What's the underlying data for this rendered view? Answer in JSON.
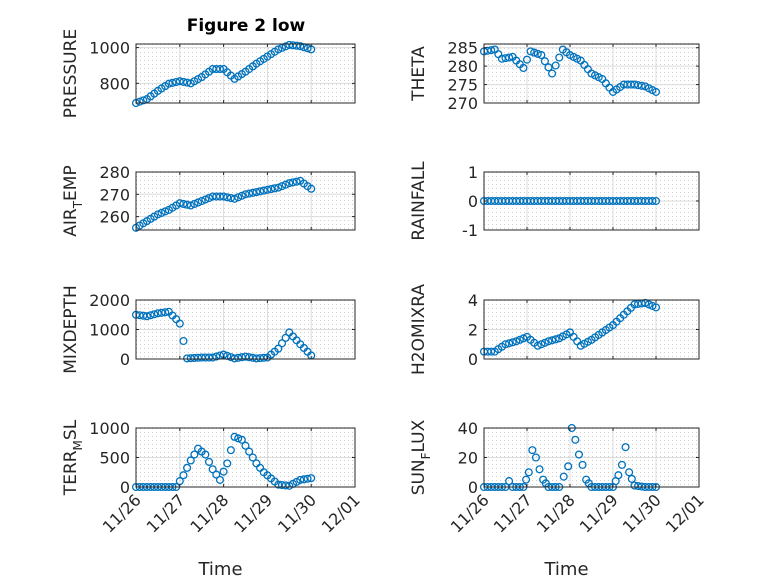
{
  "chart_data": [
    {
      "type": "scatter",
      "title": "Figure 2 low",
      "ylabel": "PRESSURE",
      "xlim": [
        "11/26",
        "12/01"
      ],
      "ylim": [
        690,
        1020
      ],
      "yticks": [
        800,
        1000
      ],
      "xtick_labels_shown": false,
      "grid": true,
      "color": "#0072BD",
      "series": [
        {
          "x": [
            "11/26 00:00",
            "11/26 06:00",
            "11/26 12:00",
            "11/26 18:00",
            "11/27 00:00",
            "11/27 06:00",
            "11/27 12:00",
            "11/27 18:00",
            "11/28 00:00",
            "11/28 06:00",
            "11/28 12:00",
            "11/28 18:00",
            "11/29 00:00",
            "11/29 06:00",
            "11/29 12:00",
            "11/29 18:00",
            "11/30 00:00"
          ],
          "y": [
            690,
            712,
            758,
            798,
            812,
            800,
            835,
            880,
            880,
            825,
            865,
            910,
            950,
            990,
            1015,
            1008,
            990
          ]
        }
      ]
    },
    {
      "type": "scatter",
      "ylabel": "THETA",
      "xlim": [
        "11/26",
        "12/01"
      ],
      "ylim": [
        270,
        286
      ],
      "yticks": [
        270,
        275,
        280,
        285
      ],
      "xtick_labels_shown": false,
      "grid": true,
      "color": "#0072BD",
      "series": [
        {
          "x": [
            "11/26 00:00",
            "11/26 06:00",
            "11/26 10:00",
            "11/26 16:00",
            "11/26 22:00",
            "11/27 02:00",
            "11/27 08:00",
            "11/27 14:00",
            "11/27 20:00",
            "11/28 00:00",
            "11/28 06:00",
            "11/28 12:00",
            "11/28 18:00",
            "11/29 00:00",
            "11/29 06:00",
            "11/29 12:00",
            "11/29 18:00",
            "11/30 00:00"
          ],
          "y": [
            284,
            284.5,
            282,
            282.5,
            279.5,
            284,
            283,
            278,
            284.5,
            283,
            281.5,
            278,
            276.5,
            273,
            275,
            275,
            274.5,
            273
          ]
        }
      ]
    },
    {
      "type": "scatter",
      "ylabel": "AIR_TEMP",
      "xlim": [
        "11/26",
        "12/01"
      ],
      "ylim": [
        254,
        280
      ],
      "yticks": [
        260,
        270,
        280
      ],
      "xtick_labels_shown": false,
      "grid": true,
      "color": "#0072BD",
      "series": [
        {
          "x": [
            "11/26 00:00",
            "11/26 06:00",
            "11/26 12:00",
            "11/26 18:00",
            "11/27 00:00",
            "11/27 06:00",
            "11/27 12:00",
            "11/27 18:00",
            "11/28 00:00",
            "11/28 06:00",
            "11/28 12:00",
            "11/28 18:00",
            "11/29 00:00",
            "11/29 06:00",
            "11/29 12:00",
            "11/29 18:00",
            "11/30 00:00"
          ],
          "y": [
            255,
            258,
            261,
            263,
            266,
            265,
            267,
            269,
            269,
            268,
            270,
            271,
            272,
            273,
            275,
            276,
            272.5
          ]
        }
      ]
    },
    {
      "type": "scatter",
      "ylabel": "RAINFALL",
      "xlim": [
        "11/26",
        "12/01"
      ],
      "ylim": [
        -1,
        1
      ],
      "yticks": [
        -1,
        0,
        1
      ],
      "xtick_labels_shown": false,
      "grid": true,
      "color": "#0072BD",
      "series": [
        {
          "x": [
            "11/26 00:00",
            "11/27 00:00",
            "11/28 00:00",
            "11/29 00:00",
            "11/30 00:00"
          ],
          "y": [
            0,
            0,
            0,
            0,
            0
          ]
        }
      ]
    },
    {
      "type": "scatter",
      "ylabel": "MIXDEPTH",
      "xlim": [
        "11/26",
        "12/01"
      ],
      "ylim": [
        0,
        2000
      ],
      "yticks": [
        0,
        1000,
        2000
      ],
      "xtick_labels_shown": false,
      "grid": true,
      "color": "#0072BD",
      "series": [
        {
          "x": [
            "11/26 00:00",
            "11/26 06:00",
            "11/26 12:00",
            "11/26 18:00",
            "11/26 22:00",
            "11/27 00:00",
            "11/27 04:00",
            "11/27 12:00",
            "11/27 18:00",
            "11/28 00:00",
            "11/28 06:00",
            "11/28 12:00",
            "11/28 18:00",
            "11/29 00:00",
            "11/29 06:00",
            "11/29 12:00",
            "11/29 18:00",
            "11/30 00:00"
          ],
          "y": [
            1500,
            1450,
            1550,
            1600,
            1350,
            1200,
            20,
            50,
            50,
            150,
            20,
            80,
            20,
            50,
            350,
            900,
            500,
            120
          ]
        }
      ]
    },
    {
      "type": "scatter",
      "ylabel": "H2OMIXRA",
      "xlim": [
        "11/26",
        "12/01"
      ],
      "ylim": [
        0,
        4
      ],
      "yticks": [
        0,
        2,
        4
      ],
      "xtick_labels_shown": false,
      "grid": true,
      "color": "#0072BD",
      "series": [
        {
          "x": [
            "11/26 00:00",
            "11/26 06:00",
            "11/26 12:00",
            "11/26 18:00",
            "11/27 00:00",
            "11/27 06:00",
            "11/27 12:00",
            "11/27 18:00",
            "11/28 00:00",
            "11/28 06:00",
            "11/28 12:00",
            "11/28 18:00",
            "11/29 00:00",
            "11/29 06:00",
            "11/29 12:00",
            "11/29 18:00",
            "11/30 00:00"
          ],
          "y": [
            0.5,
            0.5,
            1.0,
            1.2,
            1.5,
            0.9,
            1.2,
            1.4,
            1.8,
            0.9,
            1.3,
            1.8,
            2.3,
            3.0,
            3.7,
            3.8,
            3.5
          ]
        }
      ]
    },
    {
      "type": "scatter",
      "ylabel": "TERR_MSL",
      "xlabel": "Time",
      "xlim": [
        "11/26",
        "12/01"
      ],
      "ylim": [
        0,
        1000
      ],
      "yticks": [
        0,
        500,
        1000
      ],
      "xticks": [
        "11/26",
        "11/27",
        "11/28",
        "11/29",
        "11/30",
        "12/01"
      ],
      "grid": true,
      "color": "#0072BD",
      "series": [
        {
          "x": [
            "11/26 00:00",
            "11/26 12:00",
            "11/26 22:00",
            "11/27 02:00",
            "11/27 06:00",
            "11/27 10:00",
            "11/27 14:00",
            "11/27 18:00",
            "11/27 22:00",
            "11/28 02:00",
            "11/28 06:00",
            "11/28 10:00",
            "11/28 14:00",
            "11/28 18:00",
            "11/28 22:00",
            "11/29 06:00",
            "11/29 12:00",
            "11/29 18:00",
            "11/30 00:00"
          ],
          "y": [
            0,
            0,
            0,
            200,
            450,
            650,
            550,
            300,
            120,
            400,
            850,
            800,
            600,
            400,
            250,
            40,
            20,
            120,
            150
          ]
        }
      ]
    },
    {
      "type": "scatter",
      "ylabel": "SUN_FLUX",
      "xlabel": "Time",
      "xlim": [
        "11/26",
        "12/01"
      ],
      "ylim": [
        0,
        40
      ],
      "yticks": [
        0,
        20,
        40
      ],
      "xticks": [
        "11/26",
        "11/27",
        "11/28",
        "11/29",
        "11/30",
        "12/01"
      ],
      "grid": true,
      "color": "#0072BD",
      "series": [
        {
          "x": [
            "11/26 00:00",
            "11/26 12:00",
            "11/26 14:00",
            "11/26 16:00",
            "11/26 22:00",
            "11/27 01:00",
            "11/27 03:00",
            "11/27 05:00",
            "11/27 07:00",
            "11/27 09:00",
            "11/27 12:00",
            "11/27 18:00",
            "11/27 23:00",
            "11/28 01:00",
            "11/28 03:00",
            "11/28 05:00",
            "11/28 07:00",
            "11/28 09:00",
            "11/28 12:00",
            "11/28 18:00",
            "11/29 00:00",
            "11/29 03:00",
            "11/29 05:00",
            "11/29 07:00",
            "11/29 09:00",
            "11/29 12:00",
            "11/29 18:00",
            "11/30 00:00"
          ],
          "y": [
            0,
            0,
            4,
            0,
            0,
            10,
            25,
            20,
            12,
            5,
            0,
            0,
            14,
            40,
            32,
            22,
            15,
            5,
            0,
            0,
            0,
            8,
            15,
            27,
            10,
            1,
            0,
            0
          ]
        }
      ]
    }
  ]
}
